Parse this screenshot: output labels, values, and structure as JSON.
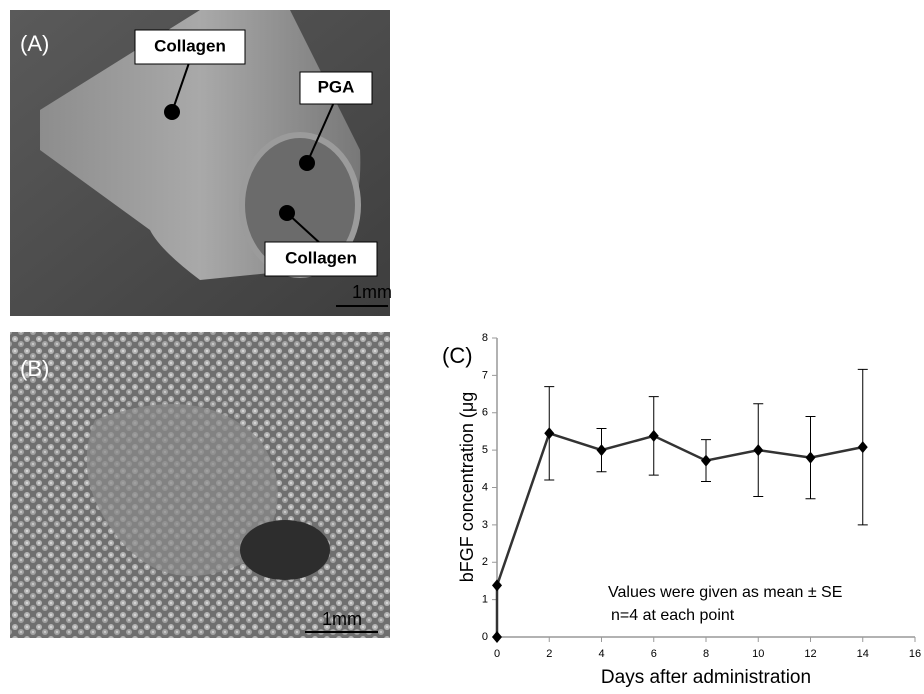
{
  "panels": {
    "a": {
      "label": "(A)",
      "callouts": [
        "Collagen",
        "PGA",
        "Collagen"
      ],
      "scale_bar": "1mm"
    },
    "b": {
      "label": "(B)",
      "scale_bar": "1mm"
    }
  },
  "chart_data": {
    "type": "line",
    "panel_label": "(C)",
    "x_label": "Days after administration",
    "y_label": "bFGF concentration (μg",
    "annotations": [
      "Values were given as mean ± SE",
      "n=4 at each point"
    ],
    "x": [
      0,
      0,
      2,
      4,
      6,
      8,
      10,
      12,
      14
    ],
    "values": [
      0,
      1.38,
      5.45,
      5.0,
      5.38,
      4.72,
      5.0,
      4.8,
      5.08
    ],
    "errors": [
      null,
      null,
      1.25,
      0.58,
      1.05,
      0.56,
      1.24,
      1.1,
      2.08
    ],
    "color": "#333333",
    "xlim": [
      0,
      16
    ],
    "xticks": [
      0,
      2,
      4,
      6,
      8,
      10,
      12,
      14,
      16
    ],
    "ylim": [
      0,
      8
    ],
    "yticks": [
      0,
      1,
      2,
      3,
      4,
      5,
      6,
      7,
      8
    ]
  }
}
